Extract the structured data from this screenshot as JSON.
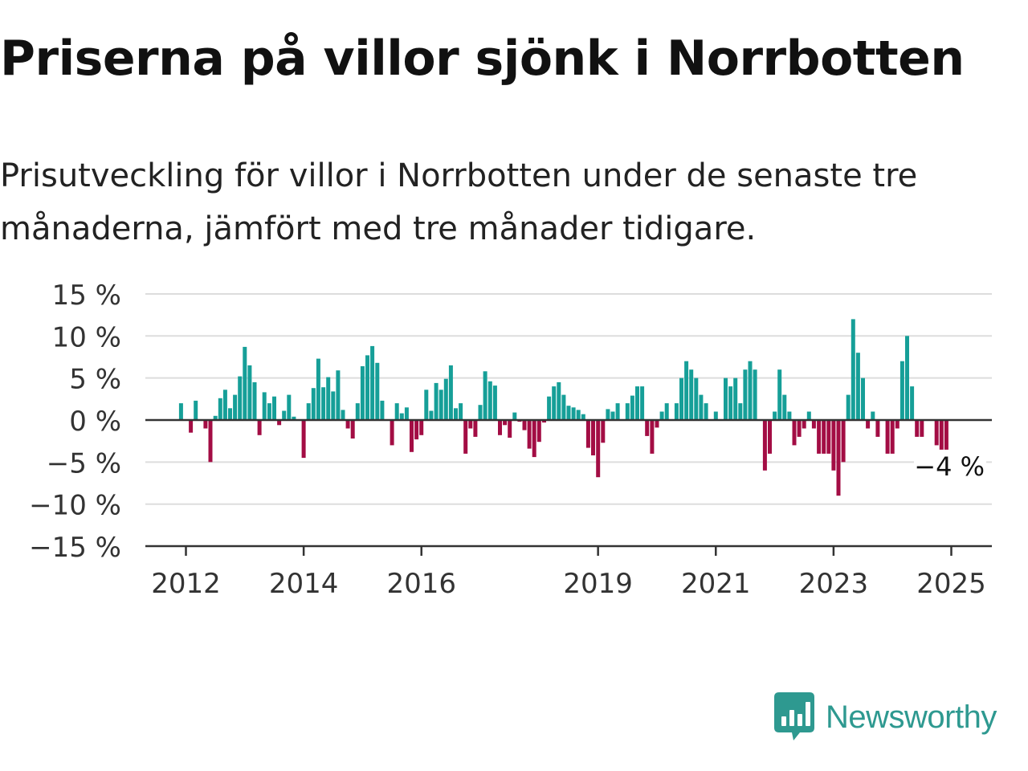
{
  "header": {
    "title": "Priserna på villor sjönk i Norrbotten",
    "subtitle": "Prisutveckling för villor i Norrbotten under de senaste tre månaderna, jämfört med tre månader tidigare."
  },
  "colors": {
    "positive": "#169f98",
    "negative": "#a30d44",
    "grid": "#dddddd",
    "axis": "#333333",
    "brand": "#2e9990"
  },
  "chart_data": {
    "type": "bar",
    "x_start": "2012-01",
    "x_end": "2025-06",
    "yticks": [
      "15 %",
      "10 %",
      "5 %",
      "0 %",
      "−5 %",
      "−10 %",
      "−15 %"
    ],
    "ytick_values": [
      15,
      10,
      5,
      0,
      -5,
      -10,
      -15
    ],
    "ylim": [
      -15,
      15
    ],
    "xticks": [
      {
        "label": "2012",
        "date": "2012-01"
      },
      {
        "label": "2014",
        "date": "2014-01"
      },
      {
        "label": "2016",
        "date": "2016-01"
      },
      {
        "label": "2019",
        "date": "2019-01"
      },
      {
        "label": "2021",
        "date": "2021-01"
      },
      {
        "label": "2023",
        "date": "2023-01"
      },
      {
        "label": "2025",
        "date": "2025-01"
      }
    ],
    "annotation": {
      "text": "−4 %"
    },
    "series": [
      {
        "points": [
          {
            "date": "2011-12",
            "value": 2
          },
          {
            "date": "2012-02",
            "value": -1.5
          },
          {
            "date": "2012-03",
            "value": 2.3
          },
          {
            "date": "2012-05",
            "value": -1
          },
          {
            "date": "2012-06",
            "value": -5
          },
          {
            "date": "2012-07",
            "value": 0.5
          },
          {
            "date": "2012-08",
            "value": 2.6
          },
          {
            "date": "2012-09",
            "value": 3.6
          },
          {
            "date": "2012-10",
            "value": 1.4
          },
          {
            "date": "2012-11",
            "value": 3
          },
          {
            "date": "2012-12",
            "value": 5.2
          },
          {
            "date": "2013-01",
            "value": 8.7
          },
          {
            "date": "2013-02",
            "value": 6.5
          },
          {
            "date": "2013-03",
            "value": 4.5
          },
          {
            "date": "2013-04",
            "value": -1.8
          },
          {
            "date": "2013-05",
            "value": 3.3
          },
          {
            "date": "2013-06",
            "value": 2
          },
          {
            "date": "2013-07",
            "value": 2.8
          },
          {
            "date": "2013-08",
            "value": -0.6
          },
          {
            "date": "2013-09",
            "value": 1.1
          },
          {
            "date": "2013-10",
            "value": 3
          },
          {
            "date": "2013-11",
            "value": 0.4
          },
          {
            "date": "2014-01",
            "value": -4.5
          },
          {
            "date": "2014-02",
            "value": 2
          },
          {
            "date": "2014-03",
            "value": 3.8
          },
          {
            "date": "2014-04",
            "value": 7.3
          },
          {
            "date": "2014-05",
            "value": 3.9
          },
          {
            "date": "2014-06",
            "value": 5.1
          },
          {
            "date": "2014-07",
            "value": 3.4
          },
          {
            "date": "2014-08",
            "value": 5.9
          },
          {
            "date": "2014-09",
            "value": 1.2
          },
          {
            "date": "2014-10",
            "value": -1
          },
          {
            "date": "2014-11",
            "value": -2.2
          },
          {
            "date": "2014-12",
            "value": 2
          },
          {
            "date": "2015-01",
            "value": 6.4
          },
          {
            "date": "2015-02",
            "value": 7.7
          },
          {
            "date": "2015-03",
            "value": 8.8
          },
          {
            "date": "2015-04",
            "value": 6.8
          },
          {
            "date": "2015-05",
            "value": 2.3
          },
          {
            "date": "2015-07",
            "value": -3
          },
          {
            "date": "2015-08",
            "value": 2
          },
          {
            "date": "2015-09",
            "value": 0.8
          },
          {
            "date": "2015-10",
            "value": 1.5
          },
          {
            "date": "2015-11",
            "value": -3.8
          },
          {
            "date": "2015-12",
            "value": -2.3
          },
          {
            "date": "2016-01",
            "value": -1.8
          },
          {
            "date": "2016-02",
            "value": 3.6
          },
          {
            "date": "2016-03",
            "value": 1.1
          },
          {
            "date": "2016-04",
            "value": 4.4
          },
          {
            "date": "2016-05",
            "value": 3.6
          },
          {
            "date": "2016-06",
            "value": 4.9
          },
          {
            "date": "2016-07",
            "value": 6.5
          },
          {
            "date": "2016-08",
            "value": 1.4
          },
          {
            "date": "2016-09",
            "value": 2
          },
          {
            "date": "2016-10",
            "value": -4
          },
          {
            "date": "2016-11",
            "value": -1
          },
          {
            "date": "2016-12",
            "value": -2
          },
          {
            "date": "2017-01",
            "value": 1.8
          },
          {
            "date": "2017-02",
            "value": 5.8
          },
          {
            "date": "2017-03",
            "value": 4.6
          },
          {
            "date": "2017-04",
            "value": 4.1
          },
          {
            "date": "2017-05",
            "value": -1.8
          },
          {
            "date": "2017-06",
            "value": -0.6
          },
          {
            "date": "2017-07",
            "value": -2.1
          },
          {
            "date": "2017-08",
            "value": 0.9
          },
          {
            "date": "2017-09",
            "value": -0.2
          },
          {
            "date": "2017-10",
            "value": -1.2
          },
          {
            "date": "2017-11",
            "value": -3.4
          },
          {
            "date": "2017-12",
            "value": -4.4
          },
          {
            "date": "2018-01",
            "value": -2.6
          },
          {
            "date": "2018-02",
            "value": -0.3
          },
          {
            "date": "2018-03",
            "value": 2.8
          },
          {
            "date": "2018-04",
            "value": 4
          },
          {
            "date": "2018-05",
            "value": 4.5
          },
          {
            "date": "2018-06",
            "value": 3
          },
          {
            "date": "2018-07",
            "value": 1.7
          },
          {
            "date": "2018-08",
            "value": 1.5
          },
          {
            "date": "2018-09",
            "value": 1.2
          },
          {
            "date": "2018-10",
            "value": 0.7
          },
          {
            "date": "2018-11",
            "value": -3.3
          },
          {
            "date": "2018-12",
            "value": -4.2
          },
          {
            "date": "2019-01",
            "value": -6.8
          },
          {
            "date": "2019-02",
            "value": -2.7
          },
          {
            "date": "2019-03",
            "value": 1.3
          },
          {
            "date": "2019-04",
            "value": 1
          },
          {
            "date": "2019-05",
            "value": 2
          },
          {
            "date": "2019-07",
            "value": 2
          },
          {
            "date": "2019-08",
            "value": 2.9
          },
          {
            "date": "2019-09",
            "value": 4
          },
          {
            "date": "2019-10",
            "value": 4
          },
          {
            "date": "2019-11",
            "value": -1.9
          },
          {
            "date": "2019-12",
            "value": -4
          },
          {
            "date": "2020-01",
            "value": -0.9
          },
          {
            "date": "2020-02",
            "value": 1
          },
          {
            "date": "2020-03",
            "value": 2
          },
          {
            "date": "2020-05",
            "value": 2
          },
          {
            "date": "2020-06",
            "value": 5
          },
          {
            "date": "2020-07",
            "value": 7
          },
          {
            "date": "2020-08",
            "value": 6
          },
          {
            "date": "2020-09",
            "value": 5
          },
          {
            "date": "2020-10",
            "value": 3
          },
          {
            "date": "2020-11",
            "value": 2
          },
          {
            "date": "2021-01",
            "value": 1
          },
          {
            "date": "2021-03",
            "value": 5
          },
          {
            "date": "2021-04",
            "value": 4
          },
          {
            "date": "2021-05",
            "value": 5
          },
          {
            "date": "2021-06",
            "value": 2
          },
          {
            "date": "2021-07",
            "value": 6
          },
          {
            "date": "2021-08",
            "value": 7
          },
          {
            "date": "2021-09",
            "value": 6
          },
          {
            "date": "2021-11",
            "value": -6
          },
          {
            "date": "2021-12",
            "value": -4
          },
          {
            "date": "2022-01",
            "value": 1
          },
          {
            "date": "2022-02",
            "value": 6
          },
          {
            "date": "2022-03",
            "value": 3
          },
          {
            "date": "2022-04",
            "value": 1
          },
          {
            "date": "2022-05",
            "value": -3
          },
          {
            "date": "2022-06",
            "value": -2
          },
          {
            "date": "2022-07",
            "value": -1
          },
          {
            "date": "2022-08",
            "value": 1
          },
          {
            "date": "2022-09",
            "value": -1
          },
          {
            "date": "2022-10",
            "value": -4
          },
          {
            "date": "2022-11",
            "value": -4
          },
          {
            "date": "2022-12",
            "value": -4
          },
          {
            "date": "2023-01",
            "value": -6
          },
          {
            "date": "2023-02",
            "value": -9
          },
          {
            "date": "2023-03",
            "value": -5
          },
          {
            "date": "2023-04",
            "value": 3
          },
          {
            "date": "2023-05",
            "value": 12
          },
          {
            "date": "2023-06",
            "value": 8
          },
          {
            "date": "2023-07",
            "value": 5
          },
          {
            "date": "2023-08",
            "value": -1
          },
          {
            "date": "2023-09",
            "value": 1
          },
          {
            "date": "2023-10",
            "value": -2
          },
          {
            "date": "2023-12",
            "value": -4
          },
          {
            "date": "2024-01",
            "value": -4
          },
          {
            "date": "2024-02",
            "value": -1
          },
          {
            "date": "2024-03",
            "value": 7
          },
          {
            "date": "2024-04",
            "value": 10
          },
          {
            "date": "2024-05",
            "value": 4
          },
          {
            "date": "2024-06",
            "value": -2
          },
          {
            "date": "2024-07",
            "value": -2
          },
          {
            "date": "2024-10",
            "value": -3
          },
          {
            "date": "2024-11",
            "value": -4
          },
          {
            "date": "2024-12",
            "value": -4
          }
        ]
      }
    ]
  },
  "brand": {
    "name": "Newsworthy",
    "logo_icon": "bar-chart-speech-bubble-icon"
  }
}
